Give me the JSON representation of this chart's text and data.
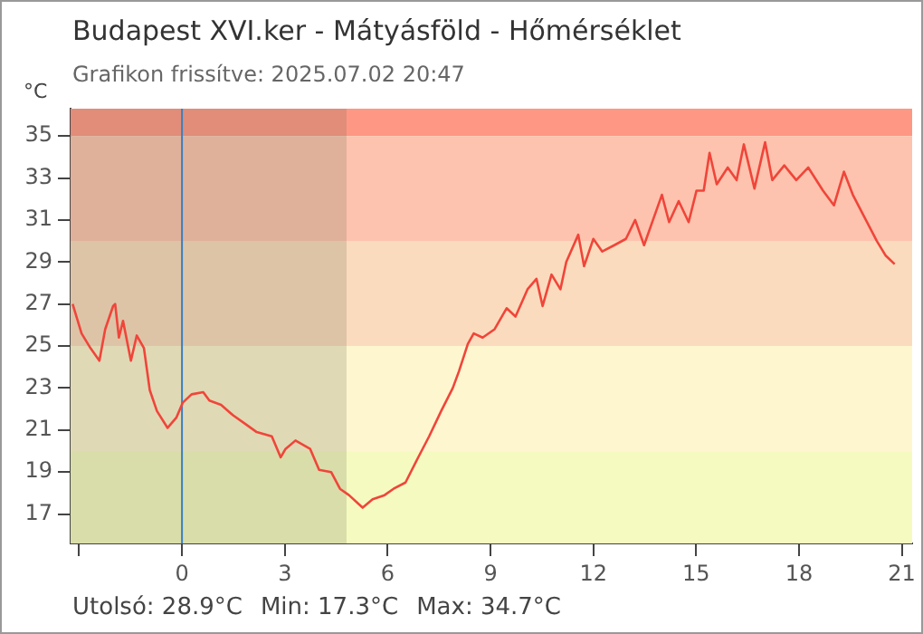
{
  "chart_data": {
    "type": "line",
    "title": "Budapest XVI.ker - Mátyásföld - Hőmérséklet",
    "subtitle": "Grafikon frissítve: 2025.07.02 20:47",
    "ylabel": "°C",
    "annotations": [
      "Utolsó: 28.9°C",
      "Min: 17.3°C",
      "Max: 34.7°C"
    ],
    "x": [
      -3.19,
      -2.93,
      -2.67,
      -2.41,
      -2.24,
      -2.01,
      -1.95,
      -1.84,
      -1.72,
      -1.49,
      -1.32,
      -1.11,
      -0.94,
      -0.73,
      -0.42,
      -0.16,
      0.02,
      0.28,
      0.62,
      0.8,
      1.14,
      1.49,
      1.84,
      2.18,
      2.62,
      2.88,
      3.02,
      3.31,
      3.74,
      4.0,
      4.35,
      4.61,
      4.87,
      5.27,
      5.56,
      5.91,
      6.17,
      6.52,
      6.86,
      7.21,
      7.56,
      7.9,
      8.08,
      8.34,
      8.51,
      8.77,
      9.12,
      9.47,
      9.73,
      10.08,
      10.34,
      10.52,
      10.78,
      11.04,
      11.21,
      11.56,
      11.73,
      12.0,
      12.26,
      12.61,
      12.95,
      13.22,
      13.48,
      13.74,
      14.0,
      14.21,
      14.49,
      14.78,
      15.01,
      15.22,
      15.39,
      15.6,
      15.92,
      16.18,
      16.39,
      16.7,
      17.01,
      17.22,
      17.57,
      17.92,
      18.27,
      18.7,
      19.02,
      19.31,
      19.57,
      19.92,
      20.27,
      20.53,
      20.79
    ],
    "series": [
      {
        "color": "#f0453a",
        "values": [
          27.0,
          25.6,
          24.9,
          24.3,
          25.8,
          26.9,
          27.0,
          25.4,
          26.2,
          24.3,
          25.5,
          24.9,
          22.9,
          21.9,
          21.1,
          21.6,
          22.3,
          22.7,
          22.8,
          22.4,
          22.2,
          21.7,
          21.3,
          20.9,
          20.7,
          19.7,
          20.1,
          20.5,
          20.1,
          19.1,
          19.0,
          18.2,
          17.9,
          17.3,
          17.7,
          17.9,
          18.2,
          18.5,
          19.6,
          20.7,
          21.9,
          23.0,
          23.8,
          25.1,
          25.6,
          25.4,
          25.8,
          26.8,
          26.4,
          27.7,
          28.2,
          26.9,
          28.4,
          27.7,
          29.0,
          30.3,
          28.8,
          30.1,
          29.5,
          29.8,
          30.1,
          31.0,
          29.8,
          31.0,
          32.2,
          30.9,
          31.9,
          30.9,
          32.4,
          32.4,
          34.2,
          32.7,
          33.5,
          32.9,
          34.6,
          32.5,
          34.7,
          32.9,
          33.6,
          32.9,
          33.5,
          32.4,
          31.7,
          33.3,
          32.2,
          31.1,
          30.0,
          29.3,
          28.9
        ]
      }
    ],
    "xlim": [
      -3.25,
      21.3
    ],
    "ylim": [
      15.6,
      36.3
    ],
    "xticks": [
      {
        "value": -3,
        "label": null
      },
      0,
      3,
      6,
      9,
      12,
      15,
      18,
      21
    ],
    "yticks": [
      17,
      19,
      21,
      23,
      25,
      27,
      29,
      31,
      33,
      35
    ],
    "bands": [
      {
        "axis": "y",
        "from": 35,
        "to": 36.3,
        "color": "#ff9785"
      },
      {
        "axis": "y",
        "from": 30,
        "to": 35,
        "color": "#fdc3ae"
      },
      {
        "axis": "y",
        "from": 25,
        "to": 30,
        "color": "#fbdbbd"
      },
      {
        "axis": "y",
        "from": 20,
        "to": 25,
        "color": "#fef6cf"
      },
      {
        "axis": "y",
        "from": 15.6,
        "to": 20,
        "color": "#f5fbc0"
      },
      {
        "axis": "x",
        "from": -3.25,
        "to": 4.8,
        "color": "#6a6a50"
      }
    ],
    "ref_lines": [
      {
        "axis": "x",
        "value": 0,
        "color": "#3a7fc0"
      }
    ],
    "grid": false,
    "legend": false,
    "marker": "none",
    "line_style": "solid"
  }
}
